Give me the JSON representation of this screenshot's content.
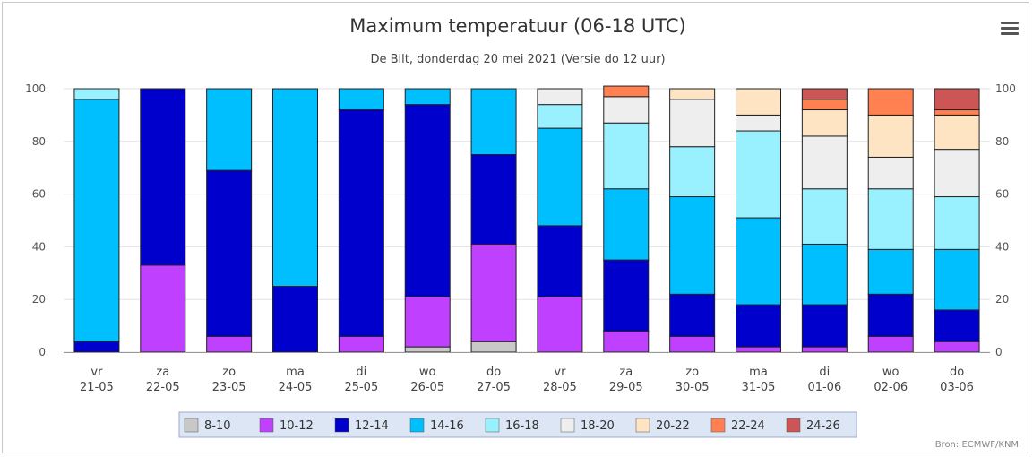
{
  "title": "Maximum temperatuur (06-18 UTC)",
  "subtitle": "De Bilt, donderdag 20 mei 2021 (Versie do 12 uur)",
  "credit": "Bron: ECMWF/KNMI",
  "chart_data": {
    "type": "bar",
    "stacked": true,
    "title": "Maximum temperatuur (06-18 UTC)",
    "subtitle": "De Bilt, donderdag 20 mei 2021 (Versie do 12 uur)",
    "categories": [
      [
        "vr",
        "21-05"
      ],
      [
        "za",
        "22-05"
      ],
      [
        "zo",
        "23-05"
      ],
      [
        "ma",
        "24-05"
      ],
      [
        "di",
        "25-05"
      ],
      [
        "wo",
        "26-05"
      ],
      [
        "do",
        "27-05"
      ],
      [
        "vr",
        "28-05"
      ],
      [
        "za",
        "29-05"
      ],
      [
        "zo",
        "30-05"
      ],
      [
        "ma",
        "31-05"
      ],
      [
        "di",
        "01-06"
      ],
      [
        "wo",
        "02-06"
      ],
      [
        "do",
        "03-06"
      ]
    ],
    "ylim": [
      0,
      100
    ],
    "yticks": [
      0,
      20,
      40,
      60,
      80,
      100
    ],
    "grid": true,
    "legend_placement": "bottom-center",
    "series": [
      {
        "name": "8-10",
        "color": "#c8c8c8",
        "values": [
          0,
          0,
          0,
          0,
          0,
          2,
          4,
          0,
          0,
          0,
          0,
          0,
          0,
          0
        ]
      },
      {
        "name": "10-12",
        "color": "#c040ff",
        "values": [
          0,
          33,
          6,
          0,
          6,
          19,
          37,
          21,
          8,
          6,
          2,
          2,
          6,
          4
        ]
      },
      {
        "name": "12-14",
        "color": "#0000cc",
        "values": [
          4,
          67,
          63,
          25,
          86,
          73,
          34,
          27,
          27,
          16,
          16,
          16,
          16,
          12
        ]
      },
      {
        "name": "14-16",
        "color": "#00bfff",
        "values": [
          92,
          0,
          31,
          75,
          8,
          6,
          25,
          37,
          27,
          37,
          33,
          23,
          17,
          23
        ]
      },
      {
        "name": "16-18",
        "color": "#99f0ff",
        "values": [
          4,
          0,
          0,
          0,
          0,
          0,
          0,
          9,
          25,
          19,
          33,
          21,
          23,
          20
        ]
      },
      {
        "name": "18-20",
        "color": "#eeeeee",
        "values": [
          0,
          0,
          0,
          0,
          0,
          0,
          0,
          6,
          10,
          18,
          6,
          20,
          12,
          18
        ]
      },
      {
        "name": "20-22",
        "color": "#ffe4c4",
        "values": [
          0,
          0,
          0,
          0,
          0,
          0,
          0,
          0,
          0,
          4,
          10,
          10,
          16,
          13
        ]
      },
      {
        "name": "22-24",
        "color": "#ff8050",
        "values": [
          0,
          0,
          0,
          0,
          0,
          0,
          0,
          0,
          4,
          0,
          0,
          4,
          10,
          2
        ]
      },
      {
        "name": "24-26",
        "color": "#cc5555",
        "values": [
          0,
          0,
          0,
          0,
          0,
          0,
          0,
          0,
          0,
          0,
          0,
          4,
          0,
          8
        ]
      }
    ]
  }
}
